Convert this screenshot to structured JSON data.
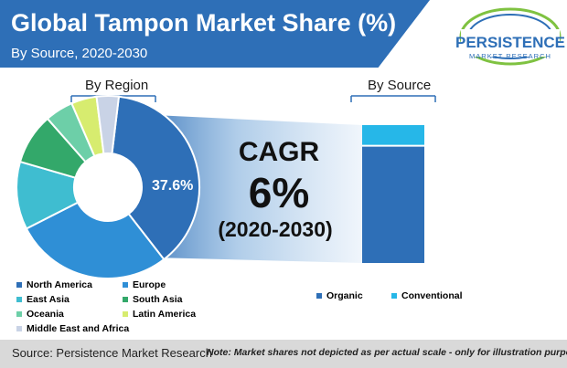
{
  "header": {
    "title": "Global Tampon Market Share (%)",
    "subtitle": "By Source, 2020-2030"
  },
  "logo": {
    "name": "PERSISTENCE",
    "tagline": "MARKET RESEARCH"
  },
  "sections": {
    "region_label": "By Region",
    "source_label": "By Source"
  },
  "cagr": {
    "title": "CAGR",
    "value": "6%",
    "period": "(2020-2030)"
  },
  "colors": {
    "header": "#2e6fb7",
    "north_america": "#2e6fb7",
    "europe": "#2f8fd6",
    "east_asia": "#3fbdd0",
    "south_asia": "#33a86a",
    "oceania": "#6dcfa8",
    "latin_america": "#d7ec6f",
    "mea": "#c9d3e6",
    "organic": "#2e6fb7",
    "conventional": "#26b7e8"
  },
  "chart_data": [
    {
      "type": "pie",
      "subtype": "donut",
      "title": "By Region",
      "highlight_label": "37.6%",
      "categories": [
        "North America",
        "Europe",
        "East Asia",
        "South Asia",
        "Oceania",
        "Latin America",
        "Middle East and Africa"
      ],
      "values": [
        37.6,
        28.0,
        12.0,
        9.0,
        5.0,
        4.5,
        3.9
      ]
    },
    {
      "type": "bar",
      "subtype": "stacked",
      "title": "By Source",
      "categories": [
        "By Source"
      ],
      "series": [
        {
          "name": "Organic",
          "values": [
            85
          ]
        },
        {
          "name": "Conventional",
          "values": [
            15
          ]
        }
      ],
      "ylim": [
        0,
        100
      ]
    }
  ],
  "footer": {
    "source": "Source: Persistence Market Research",
    "note": "Note: Market shares not depicted as per actual scale - only for illustration purposes"
  }
}
